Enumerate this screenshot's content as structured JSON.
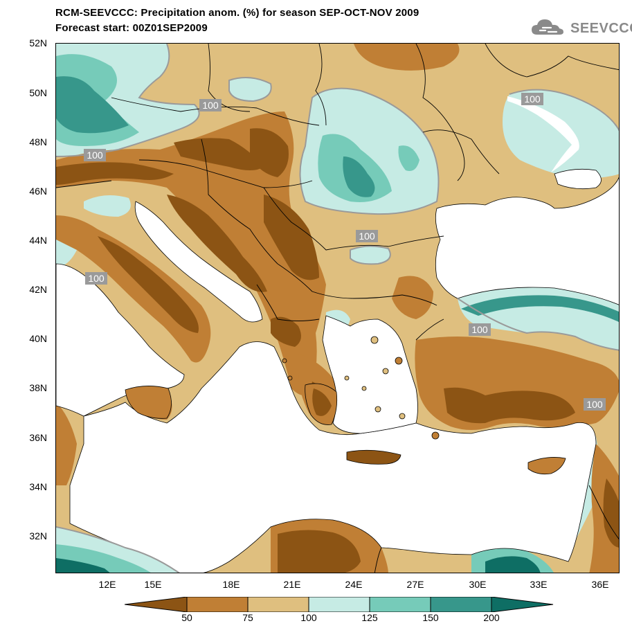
{
  "header": {
    "title_line1": "RCM-SEEVCCC: Precipitation anom. (%) for season SEP-OCT-NOV 2009",
    "title_line2": "Forecast start: 00Z01SEP2009"
  },
  "logo": {
    "text": "SEEVCCC",
    "icon": "cloud-icon"
  },
  "map": {
    "lat_labels": [
      "52N",
      "50N",
      "48N",
      "46N",
      "44N",
      "42N",
      "40N",
      "38N",
      "36N",
      "34N",
      "32N"
    ],
    "lon_labels": [
      "12E",
      "15E",
      "18E",
      "21E",
      "24E",
      "27E",
      "30E",
      "33E",
      "36E"
    ],
    "contour_labels": [
      "100",
      "100",
      "100",
      "100",
      "100",
      "100",
      "100"
    ],
    "colors": {
      "below_50": "#8c5414",
      "50_75": "#c07f35",
      "75_100": "#dfbf7f",
      "100_125": "#c6ebe4",
      "125_150": "#76cbb9",
      "150_200": "#37978b",
      "above_200": "#0e6e64",
      "sea": "#ffffff",
      "contour": "#9a9a9a"
    }
  },
  "colorbar": {
    "labels": [
      "50",
      "75",
      "100",
      "125",
      "150",
      "200"
    ],
    "colors": [
      "#8c5414",
      "#c07f35",
      "#dfbf7f",
      "#c6ebe4",
      "#76cbb9",
      "#37978b",
      "#0e6e64"
    ]
  }
}
